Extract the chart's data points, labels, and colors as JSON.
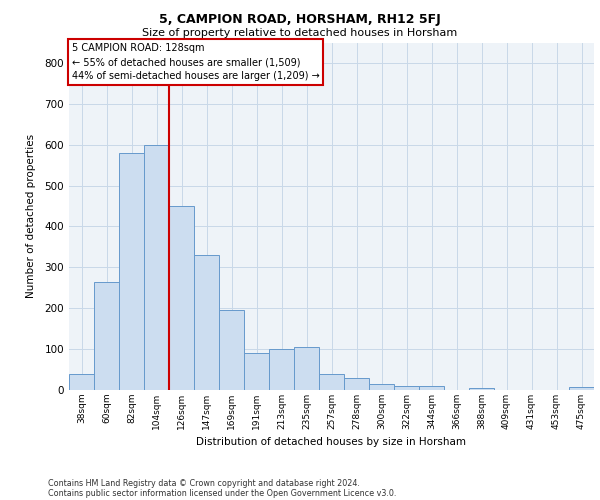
{
  "title1": "5, CAMPION ROAD, HORSHAM, RH12 5FJ",
  "title2": "Size of property relative to detached houses in Horsham",
  "xlabel": "Distribution of detached houses by size in Horsham",
  "ylabel": "Number of detached properties",
  "categories": [
    "38sqm",
    "60sqm",
    "82sqm",
    "104sqm",
    "126sqm",
    "147sqm",
    "169sqm",
    "191sqm",
    "213sqm",
    "235sqm",
    "257sqm",
    "278sqm",
    "300sqm",
    "322sqm",
    "344sqm",
    "366sqm",
    "388sqm",
    "409sqm",
    "431sqm",
    "453sqm",
    "475sqm"
  ],
  "values": [
    38,
    265,
    580,
    600,
    450,
    330,
    195,
    90,
    100,
    105,
    38,
    30,
    15,
    10,
    10,
    0,
    5,
    0,
    0,
    0,
    8
  ],
  "bar_color": "#ccddf0",
  "bar_edge_color": "#6699cc",
  "marker_label": "5 CAMPION ROAD: 128sqm",
  "annotation_line1": "← 55% of detached houses are smaller (1,509)",
  "annotation_line2": "44% of semi-detached houses are larger (1,209) →",
  "vline_color": "#cc0000",
  "annotation_box_edge": "#cc0000",
  "vline_x": 3.5,
  "ylim": [
    0,
    850
  ],
  "yticks": [
    0,
    100,
    200,
    300,
    400,
    500,
    600,
    700,
    800
  ],
  "grid_color": "#c8d8e8",
  "background_color": "#eef3f8",
  "footnote1": "Contains HM Land Registry data © Crown copyright and database right 2024.",
  "footnote2": "Contains public sector information licensed under the Open Government Licence v3.0."
}
